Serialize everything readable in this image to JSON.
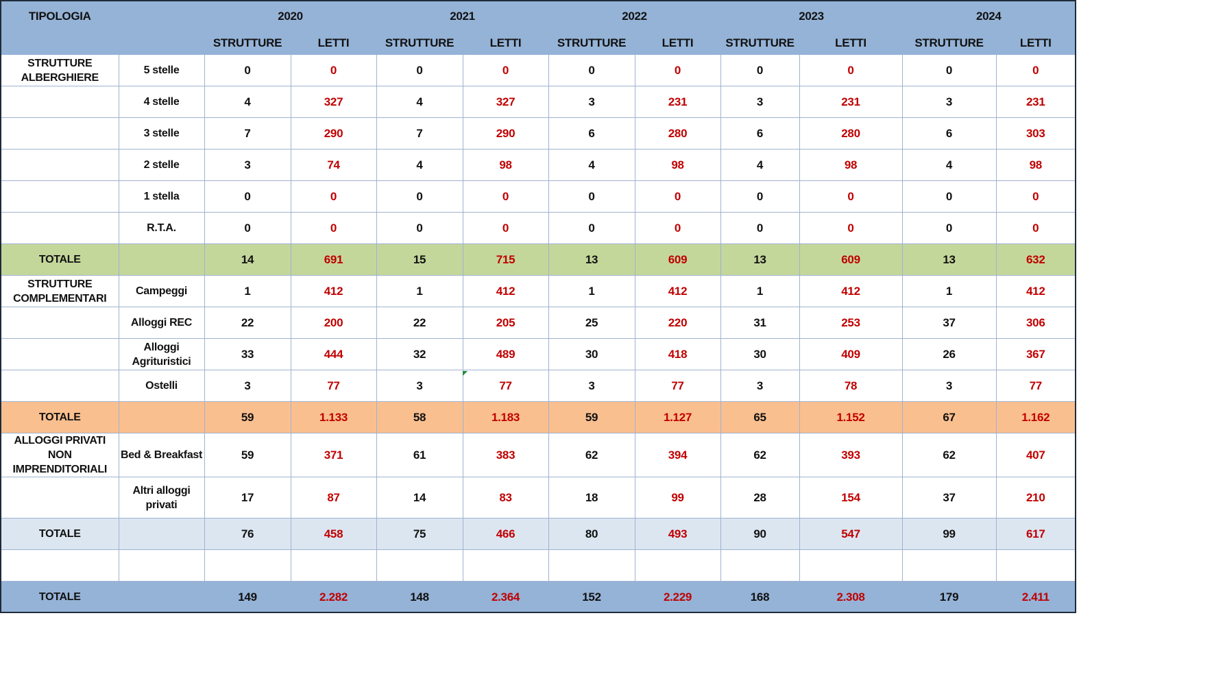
{
  "header": {
    "tipologia": "TIPOLOGIA",
    "years": [
      "2020",
      "2021",
      "2022",
      "2023",
      "2024"
    ],
    "strutture": "STRUTTURE",
    "letti": "LETTI"
  },
  "rows": [
    {
      "cat": "STRUTTURE ALBERGHIERE",
      "sub": "5 stelle",
      "v": [
        "0",
        "0",
        "0",
        "0",
        "0",
        "0",
        "0",
        "0",
        "0",
        "0"
      ]
    },
    {
      "cat": "",
      "sub": "4 stelle",
      "v": [
        "4",
        "327",
        "4",
        "327",
        "3",
        "231",
        "3",
        "231",
        "3",
        "231"
      ]
    },
    {
      "cat": "",
      "sub": "3 stelle",
      "v": [
        "7",
        "290",
        "7",
        "290",
        "6",
        "280",
        "6",
        "280",
        "6",
        "303"
      ]
    },
    {
      "cat": "",
      "sub": "2 stelle",
      "v": [
        "3",
        "74",
        "4",
        "98",
        "4",
        "98",
        "4",
        "98",
        "4",
        "98"
      ]
    },
    {
      "cat": "",
      "sub": "1 stella",
      "v": [
        "0",
        "0",
        "0",
        "0",
        "0",
        "0",
        "0",
        "0",
        "0",
        "0"
      ]
    },
    {
      "cat": "",
      "sub": "R.T.A.",
      "v": [
        "0",
        "0",
        "0",
        "0",
        "0",
        "0",
        "0",
        "0",
        "0",
        "0"
      ]
    },
    {
      "cat": "TOTALE",
      "sub": "",
      "v": [
        "14",
        "691",
        "15",
        "715",
        "13",
        "609",
        "13",
        "609",
        "13",
        "632"
      ]
    },
    {
      "cat": "STRUTTURE COMPLEMENTARI",
      "sub": "Campeggi",
      "v": [
        "1",
        "412",
        "1",
        "412",
        "1",
        "412",
        "1",
        "412",
        "1",
        "412"
      ]
    },
    {
      "cat": "",
      "sub": "Alloggi REC",
      "v": [
        "22",
        "200",
        "22",
        "205",
        "25",
        "220",
        "31",
        "253",
        "37",
        "306"
      ]
    },
    {
      "cat": "",
      "sub": "Alloggi Agrituristici",
      "v": [
        "33",
        "444",
        "32",
        "489",
        "30",
        "418",
        "30",
        "409",
        "26",
        "367"
      ]
    },
    {
      "cat": "",
      "sub": "Ostelli",
      "v": [
        "3",
        "77",
        "3",
        "77",
        "3",
        "77",
        "3",
        "78",
        "3",
        "77"
      ]
    },
    {
      "cat": "TOTALE",
      "sub": "",
      "v": [
        "59",
        "1.133",
        "58",
        "1.183",
        "59",
        "1.127",
        "65",
        "1.152",
        "67",
        "1.162"
      ]
    },
    {
      "cat": "ALLOGGI PRIVATI NON IMPRENDITORIALI",
      "sub": "Bed & Breakfast",
      "v": [
        "59",
        "371",
        "61",
        "383",
        "62",
        "394",
        "62",
        "393",
        "62",
        "407"
      ]
    },
    {
      "cat": "",
      "sub": "Altri alloggi privati",
      "v": [
        "17",
        "87",
        "14",
        "83",
        "18",
        "99",
        "28",
        "154",
        "37",
        "210"
      ]
    },
    {
      "cat": "TOTALE",
      "sub": "",
      "v": [
        "76",
        "458",
        "75",
        "466",
        "80",
        "493",
        "90",
        "547",
        "99",
        "617"
      ]
    },
    {
      "cat": "",
      "sub": "",
      "v": [
        "",
        "",
        "",
        "",
        "",
        "",
        "",
        "",
        "",
        ""
      ]
    },
    {
      "cat": "TOTALE",
      "sub": "",
      "v": [
        "149",
        "2.282",
        "148",
        "2.364",
        "152",
        "2.229",
        "168",
        "2.308",
        "179",
        "2.411"
      ]
    }
  ],
  "colors": {
    "header_bg": "#95b3d7",
    "total_alberghiere_bg": "#c4d79b",
    "total_complementari_bg": "#fabf8f",
    "total_privati_bg": "#dce6f1",
    "letti_text": "#c00000"
  }
}
